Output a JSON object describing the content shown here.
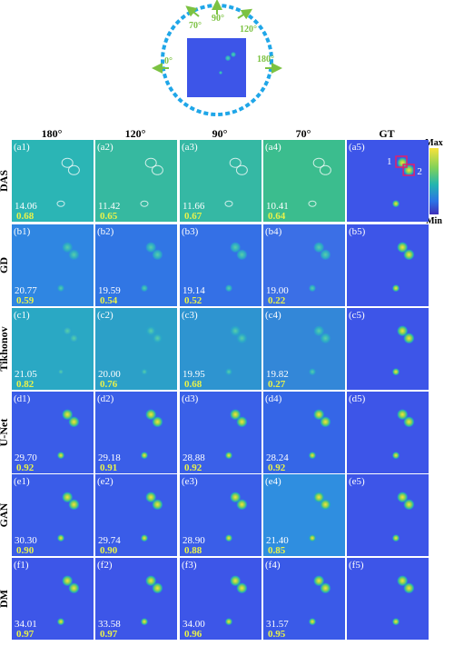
{
  "diagram": {
    "angles": {
      "a0": "0°",
      "a70": "70°",
      "a90": "90°",
      "a120": "120°",
      "a180": "180°"
    }
  },
  "columns": [
    "180°",
    "120°",
    "90°",
    "70°",
    "GT"
  ],
  "colorbar": {
    "max_label": "Max",
    "min_label": "Min"
  },
  "gt_markers": {
    "one": "1",
    "two": "2"
  },
  "rows": [
    {
      "name": "DAS",
      "letter": "a",
      "panels": [
        "(a1)",
        "(a2)",
        "(a3)",
        "(a4)",
        "(a5)"
      ],
      "psnr": [
        "14.06",
        "11.42",
        "11.66",
        "10.41"
      ],
      "ssim": [
        "0.68",
        "0.65",
        "0.67",
        "0.64"
      ],
      "colors": [
        "#2bb5b5",
        "#36b9a0",
        "#35b8a4",
        "#3bbd8e",
        "#3d55e8"
      ]
    },
    {
      "name": "GD",
      "letter": "b",
      "panels": [
        "(b1)",
        "(b2)",
        "(b3)",
        "(b4)",
        "(b5)"
      ],
      "psnr": [
        "20.77",
        "19.59",
        "19.14",
        "19.00"
      ],
      "ssim": [
        "0.59",
        "0.54",
        "0.52",
        "0.22"
      ],
      "colors": [
        "#2f86e2",
        "#3176e4",
        "#3470e6",
        "#3b6fe6",
        "#3d55e8"
      ]
    },
    {
      "name": "Tikhonov",
      "letter": "c",
      "panels": [
        "(c1)",
        "(c2)",
        "(c3)",
        "(c4)",
        "(c5)"
      ],
      "psnr": [
        "21.05",
        "20.00",
        "19.95",
        "19.82"
      ],
      "ssim": [
        "0.82",
        "0.76",
        "0.68",
        "0.27"
      ],
      "colors": [
        "#2aa8c4",
        "#2ca0c8",
        "#2e94d0",
        "#3387d8",
        "#3d55e8"
      ]
    },
    {
      "name": "U-Net",
      "letter": "d",
      "panels": [
        "(d1)",
        "(d2)",
        "(d3)",
        "(d4)",
        "(d5)"
      ],
      "psnr": [
        "29.70",
        "29.18",
        "28.88",
        "28.24"
      ],
      "ssim": [
        "0.92",
        "0.91",
        "0.92",
        "0.92"
      ],
      "colors": [
        "#3a5ce8",
        "#3a5ee8",
        "#3a60e8",
        "#3566e7",
        "#3d55e8"
      ]
    },
    {
      "name": "GAN",
      "letter": "e",
      "panels": [
        "(e1)",
        "(e2)",
        "(e3)",
        "(e4)",
        "(e5)"
      ],
      "psnr": [
        "30.30",
        "29.74",
        "28.90",
        "21.40"
      ],
      "ssim": [
        "0.90",
        "0.90",
        "0.88",
        "0.85"
      ],
      "colors": [
        "#3a5ce8",
        "#3a5ce8",
        "#3a5ee8",
        "#2f8ee0",
        "#3d55e8"
      ]
    },
    {
      "name": "DM",
      "letter": "f",
      "panels": [
        "(f1)",
        "(f2)",
        "(f3)",
        "(f4)",
        "(f5)"
      ],
      "psnr": [
        "34.01",
        "33.58",
        "34.00",
        "31.57"
      ],
      "ssim": [
        "0.97",
        "0.97",
        "0.96",
        "0.95"
      ],
      "colors": [
        "#3d56e8",
        "#3d56e8",
        "#3d56e8",
        "#3a5ae8",
        "#3d55e8"
      ]
    }
  ]
}
